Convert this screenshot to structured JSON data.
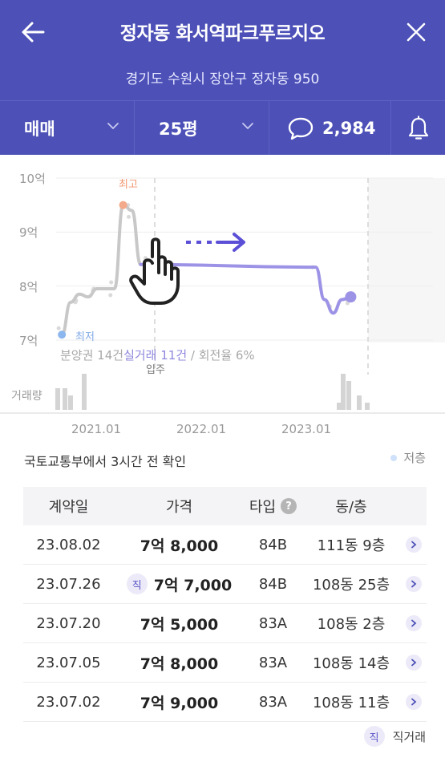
{
  "header": {
    "title": "정자동 화서역파크푸르지오",
    "address": "경기도 수원시 장안구 정자동 950"
  },
  "filters": {
    "trade_type": "매매",
    "size": "25평",
    "comment_count": "2,984"
  },
  "colors": {
    "header_bg": "#4c50b7",
    "line_past": "#c8c8c8",
    "line_recent": "#9d93e6",
    "accent": "#5a55c8",
    "high_marker": "#f3a98a",
    "low_marker": "#8bb6ee"
  },
  "chart_data": {
    "type": "line",
    "y_ticks": [
      "10억",
      "9억",
      "8억",
      "7억"
    ],
    "ylim": [
      7,
      10
    ],
    "x_ticks": [
      "2021.01",
      "2022.01",
      "2023.01"
    ],
    "max_label": "최고",
    "min_label": "최저",
    "move_in_label": "입주",
    "volume_label": "거래량",
    "stats": {
      "pre_sale": "분양권 14건",
      "trades": "실거래 11건",
      "separator": " / ",
      "turnover": "회전율 6%"
    },
    "series": [
      {
        "x": [
          "2020.11",
          "2020.12",
          "2021.01",
          "2021.02",
          "2021.03",
          "2021.04",
          "2021.05",
          "2021.06",
          "2021.07",
          "2021.08",
          "2023.04",
          "2023.05",
          "2023.06",
          "2023.07",
          "2023.08"
        ],
        "values": [
          7.1,
          7.7,
          7.85,
          7.8,
          7.95,
          7.95,
          7.95,
          9.5,
          9.4,
          8.4,
          8.35,
          7.75,
          7.5,
          7.75,
          7.8
        ]
      }
    ],
    "volume": [
      3,
      3,
      2,
      5,
      1,
      5,
      4,
      2,
      1
    ]
  },
  "gesture_icons": [
    "hand-pointer-icon",
    "swipe-right-arrow-icon"
  ],
  "transactions": {
    "confirm_text": "국토교통부에서 3시간 전 확인",
    "legend_low": "저층",
    "headers": {
      "date": "계약일",
      "price": "가격",
      "type": "타입",
      "unit": "동/층"
    },
    "direct_badge": "직",
    "direct_legend": "직거래",
    "rows": [
      {
        "date": "23.08.02",
        "price": "7억 8,000",
        "type": "84B",
        "unit": "111동 9층",
        "direct": false
      },
      {
        "date": "23.07.26",
        "price": "7억 7,000",
        "type": "84B",
        "unit": "108동 25층",
        "direct": true
      },
      {
        "date": "23.07.20",
        "price": "7억 5,000",
        "type": "83A",
        "unit": "108동 2층",
        "direct": false
      },
      {
        "date": "23.07.05",
        "price": "7억 8,000",
        "type": "83A",
        "unit": "108동 14층",
        "direct": false
      },
      {
        "date": "23.07.02",
        "price": "7억 9,000",
        "type": "83A",
        "unit": "108동 11층",
        "direct": false
      }
    ]
  }
}
